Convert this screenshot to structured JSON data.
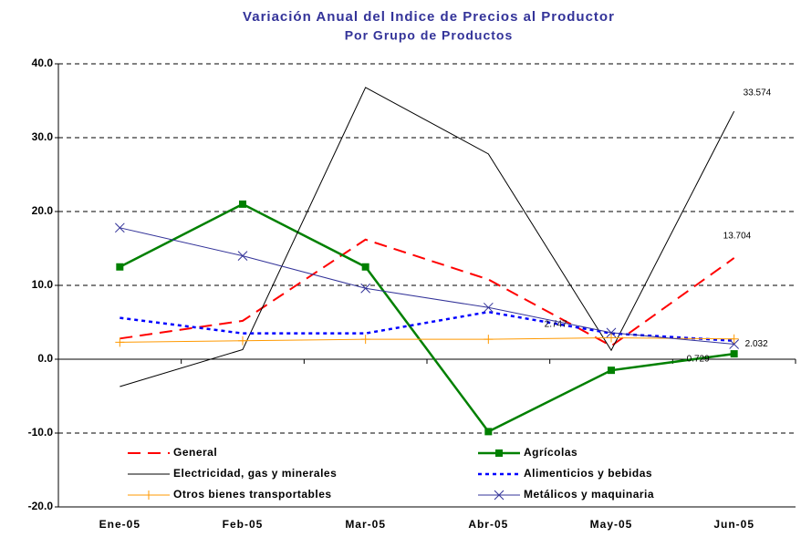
{
  "chart_data": {
    "type": "line",
    "title": "Variación Anual del Indice de Precios al Productor",
    "subtitle": "Por Grupo de Productos",
    "categories": [
      "Ene-05",
      "Feb-05",
      "Mar-05",
      "Abr-05",
      "May-05",
      "Jun-05"
    ],
    "ylim": [
      -20,
      40
    ],
    "yticks": [
      {
        "value": -20,
        "label": "-20.0"
      },
      {
        "value": -10,
        "label": "-10.0"
      },
      {
        "value": 0,
        "label": "0.0"
      },
      {
        "value": 10,
        "label": "10.0"
      },
      {
        "value": 20,
        "label": "20.0"
      },
      {
        "value": 30,
        "label": "30.0"
      },
      {
        "value": 40,
        "label": "40.0"
      }
    ],
    "grid": true,
    "series": [
      {
        "name": "General",
        "color": "#ff0000",
        "dash": "14 8",
        "marker": "none",
        "width": 2,
        "values": [
          2.8,
          5.2,
          16.2,
          10.8,
          1.8,
          13.704
        ],
        "value_labels": [
          null,
          null,
          null,
          null,
          null,
          "13.704"
        ]
      },
      {
        "name": "Agrícolas",
        "color": "#008000",
        "dash": "none",
        "marker": "square",
        "width": 2.5,
        "values": [
          12.5,
          21.0,
          12.5,
          -9.8,
          -1.5,
          0.729
        ],
        "value_labels": [
          null,
          null,
          null,
          null,
          null,
          "0.729"
        ]
      },
      {
        "name": "Electricidad, gas y minerales",
        "color": "#000000",
        "dash": "none",
        "marker": "none",
        "width": 1,
        "values": [
          -3.7,
          1.3,
          36.8,
          27.8,
          1.2,
          33.574
        ],
        "value_labels": [
          null,
          null,
          null,
          null,
          null,
          "33.574"
        ]
      },
      {
        "name": "Alimenticios y bebidas",
        "color": "#0000ff",
        "dash": "4 4",
        "marker": "none",
        "width": 2.5,
        "values": [
          5.6,
          3.5,
          3.5,
          6.4,
          3.5,
          2.5
        ]
      },
      {
        "name": "Otros bienes transportables",
        "color": "#ff9900",
        "dash": "none",
        "marker": "plus",
        "width": 1,
        "values": [
          2.3,
          2.5,
          2.7,
          2.7,
          2.9,
          2.747
        ],
        "value_labels": [
          null,
          null,
          null,
          null,
          null,
          "2.747"
        ]
      },
      {
        "name": "Metálicos y maquinaria",
        "color": "#333399",
        "dash": "none",
        "marker": "x",
        "width": 1,
        "values": [
          17.8,
          14.0,
          9.6,
          7.0,
          3.6,
          2.032
        ],
        "value_labels": [
          null,
          null,
          null,
          null,
          null,
          "2.032"
        ]
      }
    ]
  }
}
